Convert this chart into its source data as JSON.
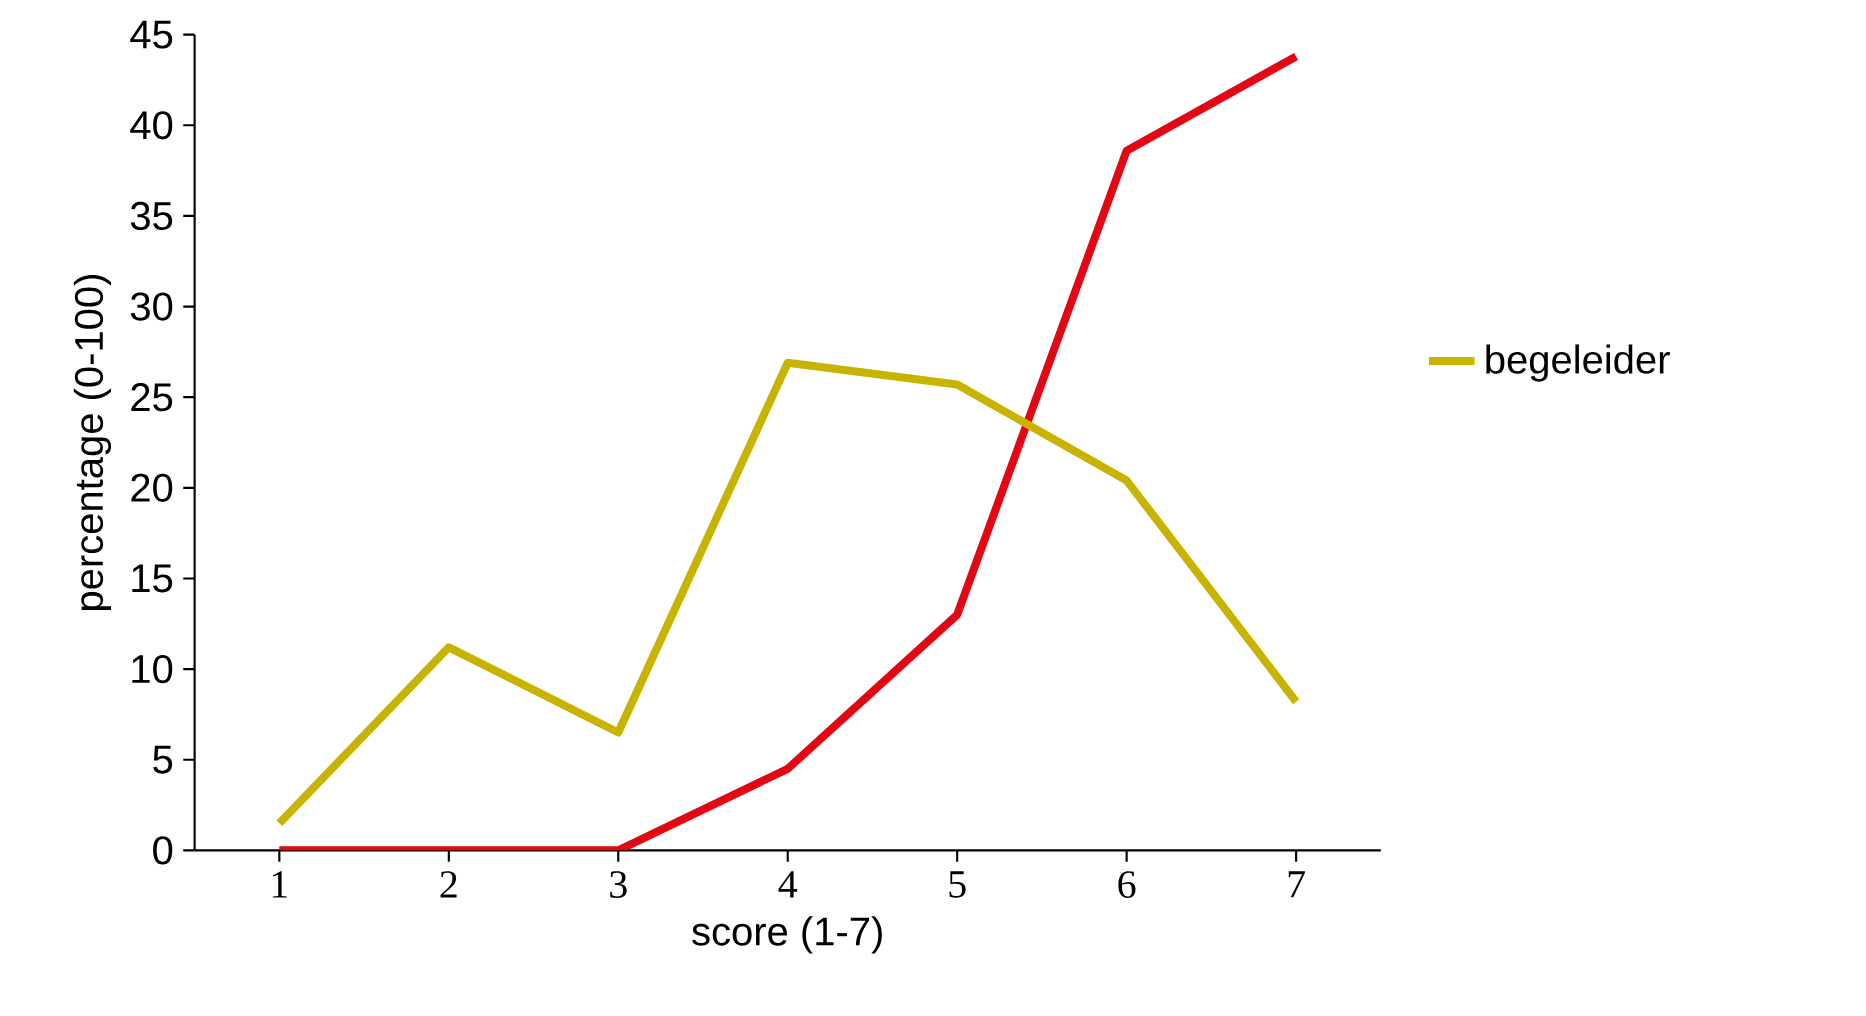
{
  "chart_data": {
    "type": "line",
    "xlabel": "score (1-7)",
    "ylabel": "percentage (0-100)",
    "categories": [
      "1",
      "2",
      "3",
      "4",
      "5",
      "6",
      "7"
    ],
    "series": [
      {
        "color": "#e30613",
        "values": [
          0,
          0,
          0,
          4.5,
          13,
          38.6,
          43.8
        ]
      },
      {
        "name": "begeleider",
        "color": "#c8b400",
        "values": [
          1.5,
          11.2,
          6.5,
          26.9,
          25.7,
          20.4,
          8.2
        ]
      }
    ],
    "ylim": [
      0,
      45
    ],
    "yticks": [
      0,
      5,
      10,
      15,
      20,
      25,
      30,
      35,
      40,
      45
    ],
    "grid": false,
    "legend": "right",
    "marker": "none",
    "line_style": "solid"
  }
}
